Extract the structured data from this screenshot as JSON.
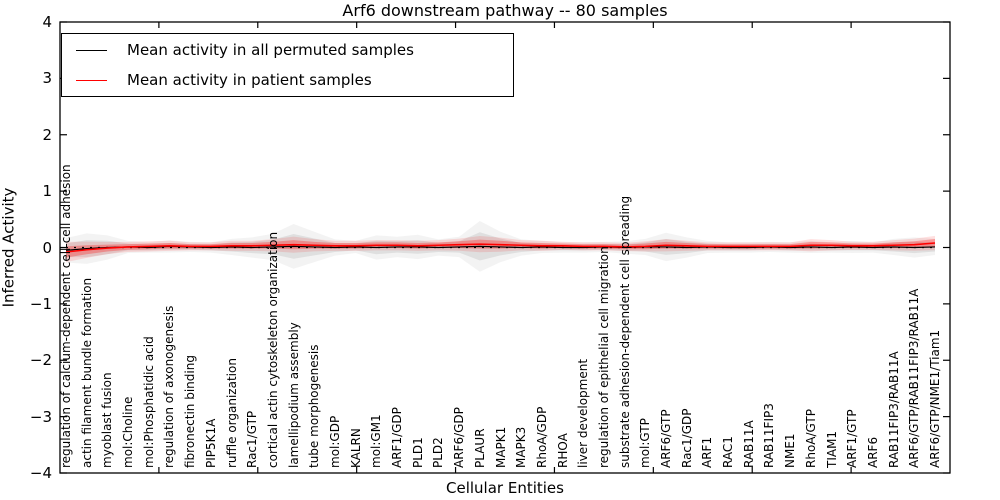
{
  "figure": {
    "title": "Arf6 downstream pathway -- 80 samples",
    "xlabel": "Cellular Entities",
    "ylabel": "Inferred Activity"
  },
  "legend": {
    "items": [
      {
        "label": "Mean activity in all permuted samples",
        "color": "#000000"
      },
      {
        "label": "Mean activity in patient samples",
        "color": "#ff0000"
      }
    ]
  },
  "axes": {
    "y_tick_labels": [
      "4",
      "3",
      "2",
      "1",
      "0",
      "−1",
      "−2",
      "−3",
      "−4"
    ],
    "ylim": [
      -4,
      4
    ]
  },
  "chart_data": {
    "type": "line",
    "title": "Arf6 downstream pathway -- 80 samples",
    "xlabel": "Cellular Entities",
    "ylabel": "Inferred Activity",
    "ylim": [
      -4,
      4
    ],
    "grid": false,
    "legend_position": "upper left",
    "zero_line": {
      "y": 0,
      "style": "dotted",
      "color": "#000000"
    },
    "categories": [
      "regulation of calcium-dependent cell-cell adhesion",
      "actin filament bundle formation",
      "myoblast fusion",
      "mol:Choline",
      "mol:Phosphatidic acid",
      "regulation of axonogenesis",
      "fibronectin binding",
      "PIP5K1A",
      "ruffle organization",
      "Rac1/GTP",
      "cortical actin cytoskeleton organization",
      "lamellipodium assembly",
      "tube morphogenesis",
      "mol:GDP",
      "KALRN",
      "mol:GM1",
      "ARF1/GDP",
      "PLD1",
      "PLD2",
      "ARF6/GDP",
      "PLAUR",
      "MAPK1",
      "MAPK3",
      "RhoA/GDP",
      "RHOA",
      "liver development",
      "regulation of epithelial cell migration",
      "substrate adhesion-dependent cell spreading",
      "mol:GTP",
      "ARF6/GTP",
      "Rac1/GDP",
      "ARF1",
      "RAC1",
      "RAB11A",
      "RAB11FIP3",
      "NME1",
      "RhoA/GTP",
      "TIAM1",
      "ARF1/GTP",
      "ARF6",
      "RAB11FIP3/RAB11A",
      "ARF6/GTP/RAB11FIP3/RAB11A",
      "ARF6/GTP/NME1/Tiam1"
    ],
    "series": [
      {
        "name": "Mean activity in all permuted samples",
        "color": "#000000",
        "values": [
          -0.05,
          -0.02,
          0,
          0.01,
          0,
          0.02,
          0.01,
          0,
          0.01,
          0,
          0.01,
          0.02,
          0.01,
          0,
          0.01,
          0,
          0.01,
          0.01,
          0,
          0.01,
          0.02,
          0.01,
          0,
          0.01,
          0,
          0,
          0.01,
          0,
          0.01,
          0.01,
          0,
          0.01,
          0,
          0,
          0.01,
          0,
          0.01,
          0,
          0.01,
          0,
          0.01,
          0,
          0.01
        ]
      },
      {
        "name": "Mean activity in patient samples",
        "color": "#ff0000",
        "values": [
          -0.08,
          -0.04,
          -0.01,
          0.01,
          0.02,
          0.03,
          0.02,
          0.02,
          0.03,
          0.03,
          0.04,
          0.05,
          0.04,
          0.03,
          0.03,
          0.04,
          0.04,
          0.03,
          0.04,
          0.05,
          0.06,
          0.05,
          0.04,
          0.03,
          0.03,
          0.02,
          0.02,
          0.01,
          0.02,
          0.04,
          0.03,
          0.02,
          0.02,
          0.02,
          0.02,
          0.02,
          0.04,
          0.04,
          0.03,
          0.03,
          0.04,
          0.05,
          0.08
        ]
      }
    ],
    "bands": [
      {
        "name": "permuted samples spread",
        "color": "#999999",
        "center_series": 0,
        "halfwidths": [
          0.12,
          0.15,
          0.12,
          0.06,
          0.05,
          0.06,
          0.05,
          0.05,
          0.08,
          0.1,
          0.13,
          0.22,
          0.15,
          0.08,
          0.06,
          0.12,
          0.1,
          0.12,
          0.08,
          0.1,
          0.25,
          0.15,
          0.08,
          0.06,
          0.05,
          0.05,
          0.05,
          0.06,
          0.08,
          0.14,
          0.1,
          0.06,
          0.05,
          0.05,
          0.05,
          0.05,
          0.06,
          0.05,
          0.06,
          0.05,
          0.08,
          0.1,
          0.08
        ]
      },
      {
        "name": "patient samples spread",
        "color": "#ff0000",
        "center_series": 1,
        "halfwidths": [
          0.1,
          0.08,
          0.06,
          0.05,
          0.05,
          0.05,
          0.04,
          0.04,
          0.05,
          0.05,
          0.06,
          0.08,
          0.06,
          0.05,
          0.05,
          0.05,
          0.05,
          0.05,
          0.05,
          0.06,
          0.08,
          0.07,
          0.05,
          0.05,
          0.04,
          0.04,
          0.04,
          0.04,
          0.05,
          0.06,
          0.05,
          0.04,
          0.04,
          0.04,
          0.04,
          0.04,
          0.06,
          0.05,
          0.04,
          0.04,
          0.05,
          0.06,
          0.07
        ]
      }
    ]
  }
}
